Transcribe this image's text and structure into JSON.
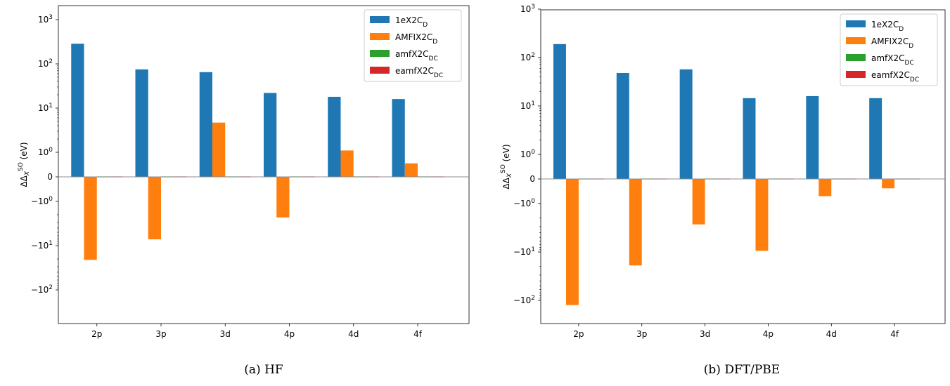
{
  "chart_data": [
    {
      "type": "bar",
      "caption": "(a) HF",
      "ylabel": "ΔΔ_X^SO (eV)",
      "yscale": "symlog",
      "categories": [
        "2p",
        "3p",
        "3d",
        "4p",
        "4d",
        "4f"
      ],
      "series": [
        {
          "name": "1eX2C_D",
          "color": "#1f77b4",
          "values": [
            285,
            75,
            65,
            22,
            18,
            16
          ]
        },
        {
          "name": "AMFIX2C_D",
          "color": "#ff7f0e",
          "values": [
            -21,
            -7.2,
            4.7,
            -2.3,
            1.1,
            0.55
          ]
        },
        {
          "name": "amfX2C_DC",
          "color": "#2ca02c",
          "values": [
            0,
            0,
            0,
            0,
            0,
            0
          ]
        },
        {
          "name": "eamfX2C_DC",
          "color": "#d62728",
          "values": [
            0,
            0,
            0,
            0,
            0,
            0
          ]
        }
      ],
      "yticks": [
        {
          "value": 1000,
          "base": "10",
          "exp": "3"
        },
        {
          "value": 100,
          "base": "10",
          "exp": "2"
        },
        {
          "value": 10,
          "base": "10",
          "exp": "1"
        },
        {
          "value": 1,
          "base": "10",
          "exp": "0"
        },
        {
          "value": 0,
          "base": "0",
          "exp": ""
        },
        {
          "value": -1,
          "base": "−10",
          "exp": "0"
        },
        {
          "value": -10,
          "base": "−10",
          "exp": "1"
        },
        {
          "value": -100,
          "base": "−10",
          "exp": "2"
        }
      ],
      "ylim": [
        -300,
        1000
      ],
      "legend": "top-right",
      "grid": false
    },
    {
      "type": "bar",
      "caption": "(b) DFT/PBE",
      "ylabel": "ΔΔ_X^SO (eV)",
      "yscale": "symlog",
      "categories": [
        "2p",
        "3p",
        "3d",
        "4p",
        "4d",
        "4f"
      ],
      "series": [
        {
          "name": "1eX2C_D",
          "color": "#1f77b4",
          "values": [
            190,
            48,
            57,
            14.5,
            16,
            14.5
          ]
        },
        {
          "name": "AMFIX2C_D",
          "color": "#ff7f0e",
          "values": [
            -125,
            -19,
            -2.7,
            -9.5,
            -0.7,
            -0.38
          ]
        },
        {
          "name": "amfX2C_DC",
          "color": "#2ca02c",
          "values": [
            0,
            0,
            0,
            0,
            0,
            0
          ]
        },
        {
          "name": "eamfX2C_DC",
          "color": "#d62728",
          "values": [
            0,
            0,
            0,
            0,
            0,
            0
          ]
        }
      ],
      "yticks": [
        {
          "value": 1000,
          "base": "10",
          "exp": "3"
        },
        {
          "value": 100,
          "base": "10",
          "exp": "2"
        },
        {
          "value": 10,
          "base": "10",
          "exp": "1"
        },
        {
          "value": 1,
          "base": "10",
          "exp": "0"
        },
        {
          "value": 0,
          "base": "0",
          "exp": ""
        },
        {
          "value": -1,
          "base": "−10",
          "exp": "0"
        },
        {
          "value": -10,
          "base": "−10",
          "exp": "1"
        },
        {
          "value": -100,
          "base": "−10",
          "exp": "2"
        }
      ],
      "ylim": [
        -300,
        1000
      ],
      "legend": "top-right",
      "grid": false
    }
  ]
}
